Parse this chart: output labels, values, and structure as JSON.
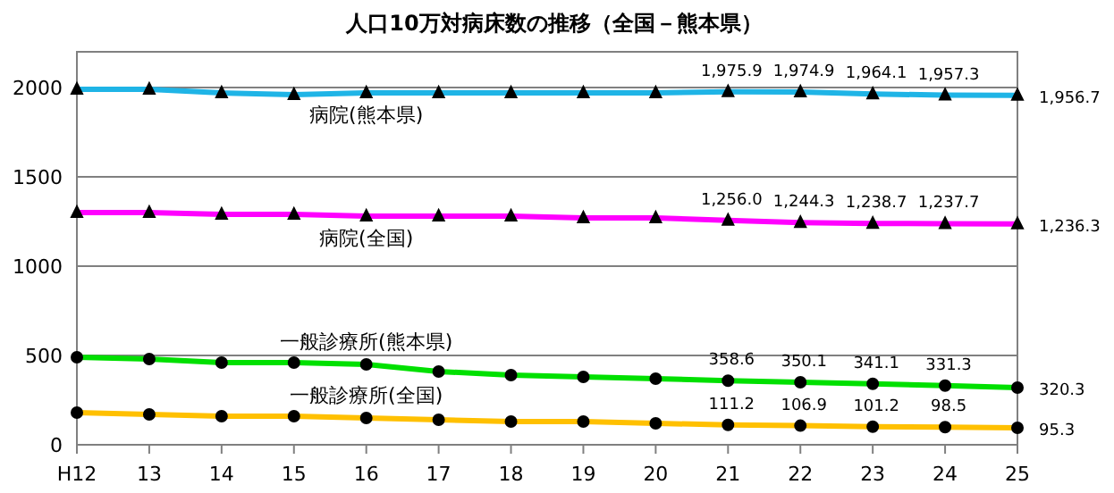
{
  "chart_data": {
    "type": "line",
    "title": "人口10万対病床数の推移（全国－熊本県）",
    "categories": [
      "H12",
      "13",
      "14",
      "15",
      "16",
      "17",
      "18",
      "19",
      "20",
      "21",
      "22",
      "23",
      "24",
      "25"
    ],
    "ylim": [
      0,
      2200
    ],
    "yticks": [
      0,
      500,
      1000,
      1500,
      2000
    ],
    "grid": "y",
    "legend": false,
    "series": [
      {
        "name": "病院(熊本県)",
        "color": "#1fb4e6",
        "marker": "triangle",
        "values": [
          1990,
          1990,
          1970,
          1960,
          1970,
          1970,
          1970,
          1970,
          1970,
          1975.9,
          1974.9,
          1964.1,
          1957.3,
          1956.7
        ],
        "value_labels": [
          null,
          null,
          null,
          null,
          null,
          null,
          null,
          null,
          null,
          "1,975.9",
          "1,974.9",
          "1,964.1",
          "1,957.3",
          "1,956.7"
        ]
      },
      {
        "name": "病院(全国)",
        "color": "#ff00ff",
        "marker": "triangle",
        "values": [
          1300,
          1300,
          1290,
          1290,
          1280,
          1280,
          1280,
          1270,
          1270,
          1256.0,
          1244.3,
          1238.7,
          1237.7,
          1236.3
        ],
        "value_labels": [
          null,
          null,
          null,
          null,
          null,
          null,
          null,
          null,
          null,
          "1,256.0",
          "1,244.3",
          "1,238.7",
          "1,237.7",
          "1,236.3"
        ]
      },
      {
        "name": "一般診療所(熊本県)",
        "color": "#00e000",
        "marker": "circle",
        "values": [
          490,
          480,
          460,
          460,
          450,
          410,
          390,
          380,
          370,
          358.6,
          350.1,
          341.1,
          331.3,
          320.3
        ],
        "value_labels": [
          null,
          null,
          null,
          null,
          null,
          null,
          null,
          null,
          null,
          "358.6",
          "350.1",
          "341.1",
          "331.3",
          "320.3"
        ]
      },
      {
        "name": "一般診療所(全国)",
        "color": "#ffc000",
        "marker": "circle",
        "values": [
          180,
          170,
          160,
          160,
          150,
          140,
          130,
          130,
          120,
          111.2,
          106.9,
          101.2,
          98.5,
          95.3
        ],
        "value_labels": [
          null,
          null,
          null,
          null,
          null,
          null,
          null,
          null,
          null,
          "111.2",
          "106.9",
          "101.2",
          "98.5",
          "95.3"
        ]
      }
    ]
  }
}
